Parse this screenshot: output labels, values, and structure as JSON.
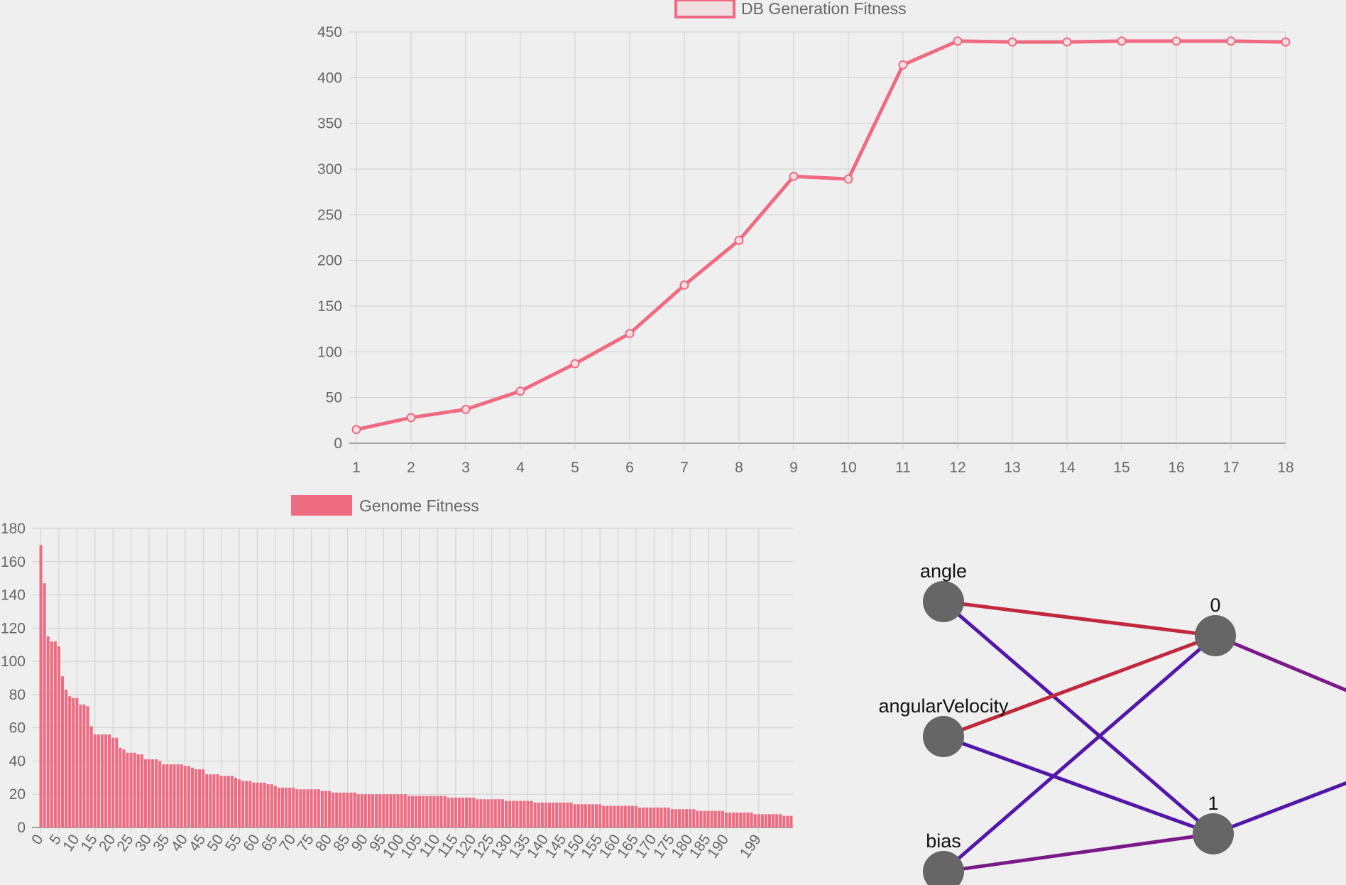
{
  "chart_data": [
    {
      "type": "line",
      "legend_label": "DB Generation Fitness",
      "legend_position": "top",
      "x": [
        "1",
        "2",
        "3",
        "4",
        "5",
        "6",
        "7",
        "8",
        "9",
        "10",
        "11",
        "12",
        "13",
        "14",
        "15",
        "16",
        "17",
        "18"
      ],
      "values": [
        15,
        28,
        37,
        57,
        87,
        120,
        173,
        222,
        292,
        289,
        414,
        440,
        439,
        439,
        440,
        440,
        440,
        439
      ],
      "ylim": [
        0,
        450
      ],
      "yticks": [
        0,
        50,
        100,
        150,
        200,
        250,
        300,
        350,
        400,
        450
      ],
      "grid": true,
      "color": "#ee6b81"
    },
    {
      "type": "bar",
      "legend_label": "Genome Fitness",
      "legend_position": "top",
      "categories_range": [
        0,
        199
      ],
      "xtick_labels": [
        "0",
        "5",
        "10",
        "15",
        "20",
        "25",
        "30",
        "35",
        "40",
        "45",
        "50",
        "55",
        "60",
        "65",
        "70",
        "75",
        "80",
        "85",
        "90",
        "95",
        "100",
        "105",
        "110",
        "115",
        "120",
        "125",
        "130",
        "135",
        "140",
        "145",
        "150",
        "155",
        "160",
        "165",
        "170",
        "175",
        "180",
        "185",
        "190",
        "199"
      ],
      "values": [
        170,
        147,
        115,
        112,
        112,
        109,
        91,
        83,
        79,
        78,
        78,
        74,
        74,
        73,
        61,
        56,
        56,
        56,
        56,
        56,
        54,
        54,
        48,
        47,
        45,
        45,
        45,
        44,
        44,
        41,
        41,
        41,
        41,
        40,
        38,
        38,
        38,
        38,
        38,
        38,
        37,
        37,
        36,
        35,
        35,
        35,
        32,
        32,
        32,
        32,
        31,
        31,
        31,
        31,
        30,
        29,
        28,
        28,
        28,
        27,
        27,
        27,
        27,
        26,
        26,
        25,
        24,
        24,
        24,
        24,
        24,
        23,
        23,
        23,
        23,
        23,
        23,
        23,
        22,
        22,
        22,
        21,
        21,
        21,
        21,
        21,
        21,
        21,
        20,
        20,
        20,
        20,
        20,
        20,
        20,
        20,
        20,
        20,
        20,
        20,
        20,
        20,
        19,
        19,
        19,
        19,
        19,
        19,
        19,
        19,
        19,
        19,
        19,
        18,
        18,
        18,
        18,
        18,
        18,
        18,
        18,
        17,
        17,
        17,
        17,
        17,
        17,
        17,
        17,
        16,
        16,
        16,
        16,
        16,
        16,
        16,
        16,
        15,
        15,
        15,
        15,
        15,
        15,
        15,
        15,
        15,
        15,
        15,
        14,
        14,
        14,
        14,
        14,
        14,
        14,
        14,
        13,
        13,
        13,
        13,
        13,
        13,
        13,
        13,
        13,
        13,
        12,
        12,
        12,
        12,
        12,
        12,
        12,
        12,
        12,
        11,
        11,
        11,
        11,
        11,
        11,
        11,
        10,
        10,
        10,
        10,
        10,
        10,
        10,
        10,
        9,
        9,
        9,
        9,
        9,
        9,
        9,
        9,
        8,
        8,
        8,
        8,
        8,
        8,
        8,
        8,
        7,
        7,
        7
      ],
      "ylim": [
        0,
        180
      ],
      "yticks": [
        0,
        20,
        40,
        60,
        80,
        100,
        120,
        140,
        160,
        180
      ],
      "grid": true,
      "color": "#ee6b81"
    }
  ],
  "network": {
    "nodes": [
      {
        "id": "angle",
        "label": "angle"
      },
      {
        "id": "angularVelocity",
        "label": "angularVelocity"
      },
      {
        "id": "bias",
        "label": "bias"
      },
      {
        "id": "h0",
        "label": "0"
      },
      {
        "id": "h1",
        "label": "1"
      },
      {
        "id": "out",
        "label": ""
      }
    ],
    "edges": [
      {
        "from": "angle",
        "to": "h0",
        "sign": "positive"
      },
      {
        "from": "angle",
        "to": "h1",
        "sign": "negative"
      },
      {
        "from": "angularVelocity",
        "to": "h0",
        "sign": "positive"
      },
      {
        "from": "angularVelocity",
        "to": "h1",
        "sign": "negative"
      },
      {
        "from": "bias",
        "to": "h0",
        "sign": "negative"
      },
      {
        "from": "bias",
        "to": "h1",
        "sign": "mixed"
      },
      {
        "from": "h0",
        "to": "out",
        "sign": "mixed"
      },
      {
        "from": "h1",
        "to": "out",
        "sign": "negative"
      }
    ],
    "colors": {
      "positive": "#c0283c",
      "negative": "#5317a8",
      "mixed": "#7a1a88",
      "node": "#666666"
    }
  }
}
